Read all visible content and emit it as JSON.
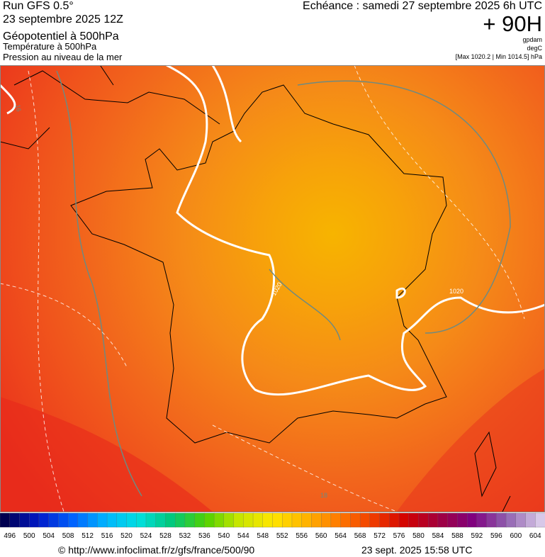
{
  "header": {
    "run": "Run GFS 0.5°",
    "date": "23 septembre 2025 12Z",
    "field_1": "Géopotentiel à 500hPa",
    "field_2": "Température à 500hPa",
    "field_3": "Pression au niveau de la mer",
    "valid": "Echéance : samedi 27 septembre 2025 6h UTC",
    "lead": "+ 90H",
    "unit_1": "gpdam",
    "unit_2": "degC",
    "pressure_range": "[Max 1020.2 | Min 1014.5] hPa"
  },
  "map": {
    "contour_labels": [
      "1020",
      "1020",
      "18",
      "16"
    ]
  },
  "colorbar": {
    "labels": [
      496,
      500,
      504,
      508,
      512,
      516,
      520,
      524,
      528,
      532,
      536,
      540,
      544,
      548,
      552,
      556,
      560,
      564,
      568,
      572,
      576,
      580,
      584,
      588,
      592,
      596,
      600,
      604
    ],
    "colors": [
      "#000050",
      "#0018c8",
      "#0060ff",
      "#00b4ff",
      "#00e0e0",
      "#00c878",
      "#50d200",
      "#c8e600",
      "#ffe600",
      "#ffb400",
      "#ff7800",
      "#f03c00",
      "#d20000",
      "#a00040",
      "#800080",
      "#9060b0",
      "#d8c8e8"
    ]
  },
  "footer": {
    "source": "© http://www.infoclimat.fr/z/gfs/france/500/90",
    "generated": "23 sept. 2025 15:58 UTC"
  }
}
